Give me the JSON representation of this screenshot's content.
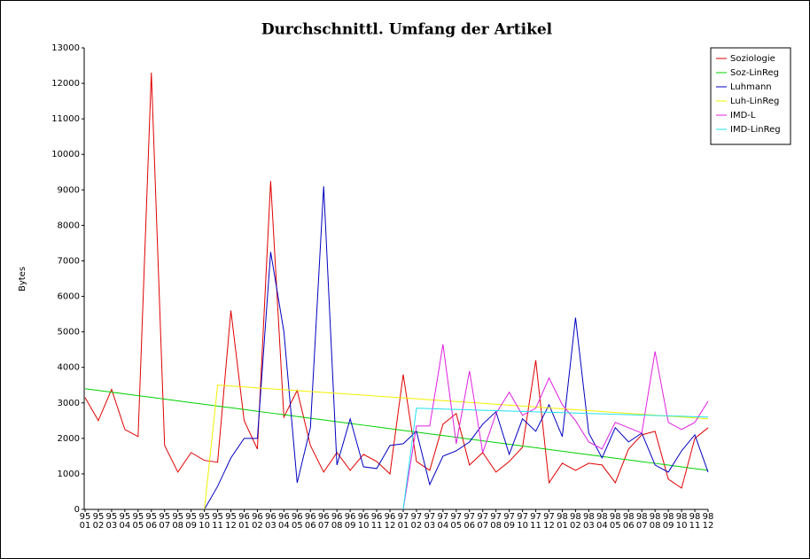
{
  "chart_data": {
    "type": "line",
    "title": "Durchschnittl. Umfang der Artikel",
    "ylabel": "Bytes",
    "categories": [
      "95\n01",
      "95\n02",
      "95\n03",
      "95\n04",
      "95\n05",
      "95\n06",
      "95\n07",
      "95\n08",
      "95\n09",
      "95\n10",
      "95\n11",
      "95\n12",
      "96\n01",
      "96\n02",
      "96\n03",
      "96\n04",
      "96\n05",
      "96\n06",
      "96\n07",
      "96\n08",
      "96\n09",
      "96\n10",
      "96\n11",
      "96\n12",
      "97\n01",
      "97\n02",
      "97\n03",
      "97\n04",
      "97\n05",
      "97\n06",
      "97\n07",
      "97\n08",
      "97\n09",
      "97\n10",
      "97\n11",
      "97\n12",
      "98\n01",
      "98\n02",
      "98\n03",
      "98\n04",
      "98\n05",
      "98\n06",
      "98\n07",
      "98\n08",
      "98\n09",
      "98\n10",
      "98\n11",
      "98\n12"
    ],
    "ylim": [
      0,
      13000
    ],
    "yticks": [
      0,
      1000,
      2000,
      3000,
      4000,
      5000,
      6000,
      7000,
      8000,
      9000,
      10000,
      11000,
      12000,
      13000
    ],
    "legend": "top-right",
    "series": [
      {
        "name": "Soziologie",
        "color": "#e00000",
        "values": [
          3150,
          2500,
          3380,
          2250,
          2050,
          12300,
          1800,
          1050,
          1600,
          1380,
          1330,
          5600,
          2500,
          1700,
          9250,
          2600,
          3350,
          1800,
          1050,
          1600,
          1100,
          1550,
          1350,
          1000,
          3800,
          1350,
          1100,
          2400,
          2700,
          1250,
          1600,
          1050,
          1350,
          1750,
          4200,
          750,
          1300,
          1100,
          1300,
          1250,
          750,
          1700,
          2100,
          2200,
          850,
          600,
          2000,
          2300
        ]
      },
      {
        "name": "Soz-LinReg",
        "color": "#00d000",
        "values": [
          3400,
          3351,
          3302,
          3253,
          3204,
          3155,
          3106,
          3057,
          3008,
          2960,
          2911,
          2862,
          2813,
          2764,
          2715,
          2666,
          2617,
          2568,
          2519,
          2470,
          2421,
          2372,
          2323,
          2274,
          2225,
          2177,
          2128,
          2079,
          2030,
          1981,
          1932,
          1883,
          1834,
          1785,
          1736,
          1687,
          1638,
          1589,
          1540,
          1491,
          1442,
          1394,
          1345,
          1296,
          1247,
          1198,
          1149,
          1100
        ]
      },
      {
        "name": "Luhmann",
        "color": "#0000c0",
        "values": [
          null,
          null,
          null,
          null,
          null,
          null,
          null,
          null,
          null,
          0,
          650,
          1450,
          2000,
          2000,
          7250,
          5000,
          750,
          2300,
          9100,
          1250,
          2550,
          1200,
          1150,
          1800,
          1850,
          2200,
          700,
          1500,
          1650,
          1900,
          2400,
          2750,
          1550,
          2550,
          2200,
          2950,
          2050,
          5400,
          2150,
          1450,
          2300,
          1900,
          2150,
          1250,
          1050,
          1650,
          2100,
          1050
        ]
      },
      {
        "name": "Luh-LinReg",
        "color": "#f0f000",
        "values": [
          null,
          null,
          null,
          null,
          null,
          null,
          null,
          null,
          null,
          0,
          3500,
          3474,
          3449,
          3423,
          3397,
          3372,
          3346,
          3320,
          3295,
          3269,
          3243,
          3218,
          3192,
          3166,
          3141,
          3115,
          3089,
          3064,
          3038,
          3012,
          2987,
          2961,
          2935,
          2910,
          2884,
          2858,
          2833,
          2807,
          2781,
          2756,
          2730,
          2704,
          2679,
          2653,
          2627,
          2602,
          2576,
          2550
        ]
      },
      {
        "name": "IMD-L",
        "color": "#e020e0",
        "values": [
          null,
          null,
          null,
          null,
          null,
          null,
          null,
          null,
          null,
          null,
          null,
          null,
          null,
          null,
          null,
          null,
          null,
          null,
          null,
          null,
          null,
          null,
          null,
          null,
          0,
          2350,
          2350,
          4650,
          1850,
          3900,
          1600,
          2700,
          3300,
          2650,
          2850,
          3700,
          2950,
          2500,
          1900,
          1700,
          2450,
          2300,
          2150,
          4450,
          2450,
          2250,
          2450,
          3050
        ]
      },
      {
        "name": "IMD-LinReg",
        "color": "#20e0f0",
        "values": [
          null,
          null,
          null,
          null,
          null,
          null,
          null,
          null,
          null,
          null,
          null,
          null,
          null,
          null,
          null,
          null,
          null,
          null,
          null,
          null,
          null,
          null,
          null,
          null,
          0,
          2850,
          2839,
          2827,
          2816,
          2805,
          2793,
          2782,
          2770,
          2759,
          2748,
          2736,
          2725,
          2714,
          2702,
          2691,
          2680,
          2668,
          2657,
          2645,
          2634,
          2623,
          2611,
          2600
        ]
      }
    ]
  }
}
